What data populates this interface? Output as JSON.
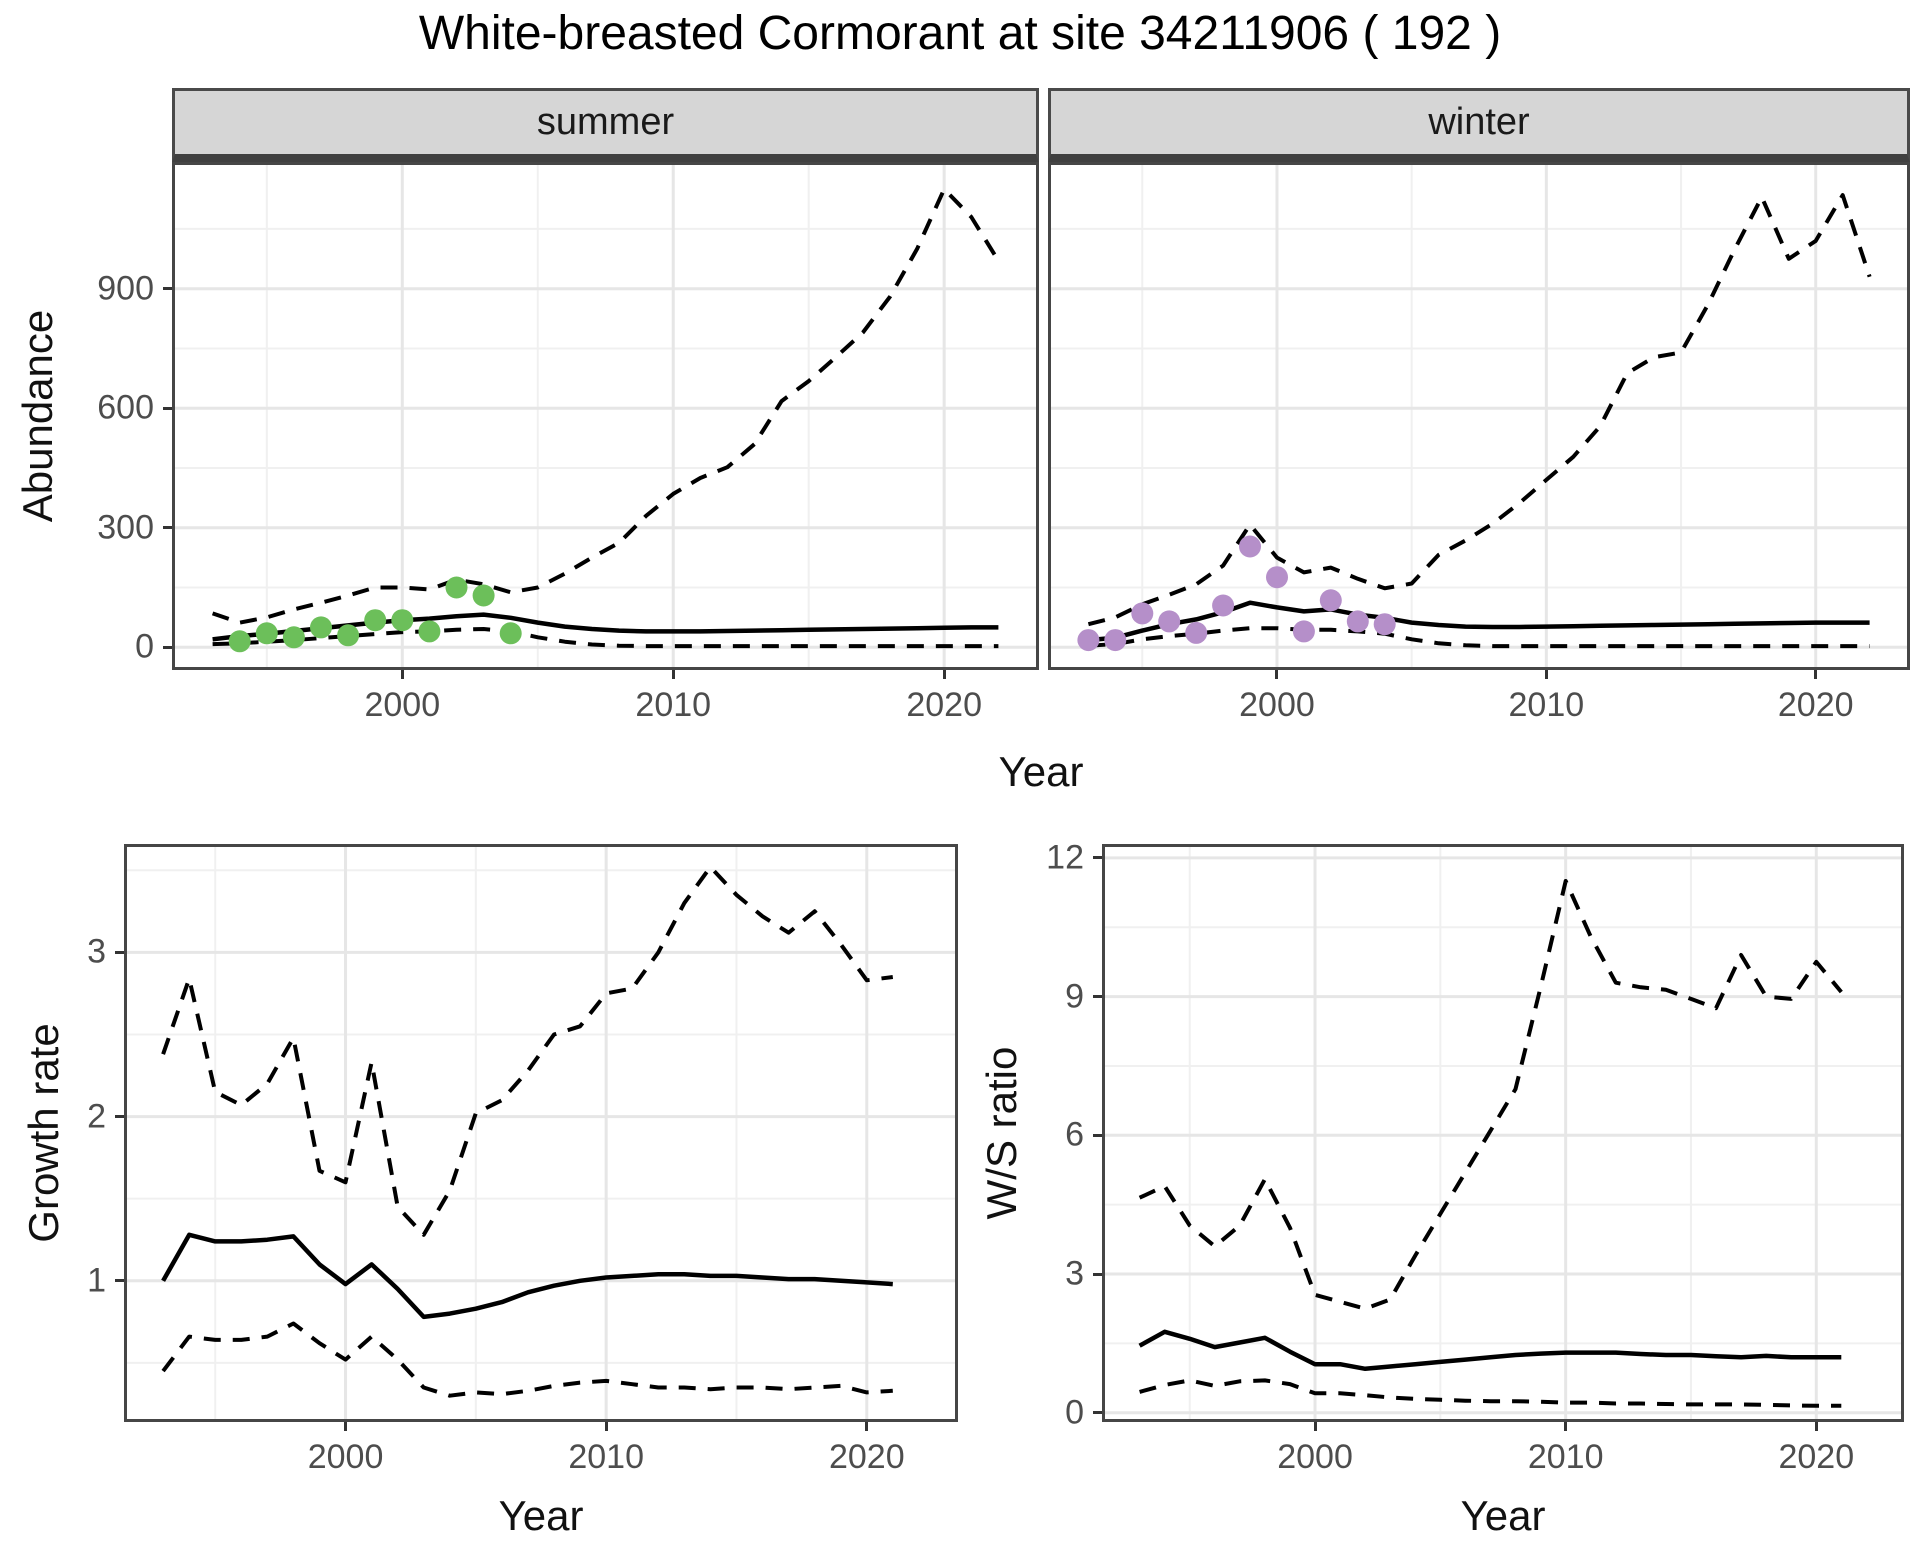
{
  "title": "White-breasted Cormorant at site 34211906 ( 192 )",
  "colors": {
    "line": "#000000",
    "grid_major": "#e6e6e6",
    "grid_minor": "#f0f0f0",
    "panel_border": "#464646",
    "strip_background": "#d6d6d6",
    "tick_text": "#4d4d4d",
    "summer_points": "#6cbf5a",
    "winter_points": "#b58fc9"
  },
  "chart_data": [
    {
      "type": "line",
      "title": "summer",
      "xlabel": "Year",
      "ylabel": "Abundance",
      "legend": "none",
      "grid": true,
      "xlim": [
        1991.5,
        2023.5
      ],
      "ylim": [
        -57,
        1218
      ],
      "xticks": [
        2000,
        2010,
        2020
      ],
      "xtick_labels": [
        "2000",
        "2010",
        "2020"
      ],
      "xticks_minor": [
        1995,
        2005,
        2015
      ],
      "yticks": [
        0,
        300,
        600,
        900
      ],
      "ytick_labels": [
        "0",
        "300",
        "600",
        "900"
      ],
      "yticks_minor": [
        150,
        450,
        750,
        1050
      ],
      "x": [
        1993,
        1994,
        1995,
        1996,
        1997,
        1998,
        1999,
        2000,
        2001,
        2002,
        2003,
        2004,
        2005,
        2006,
        2007,
        2008,
        2009,
        2010,
        2011,
        2012,
        2013,
        2014,
        2015,
        2016,
        2017,
        2018,
        2019,
        2020,
        2021,
        2022
      ],
      "series": [
        {
          "name": "upper_ci",
          "line": "dashed",
          "values": [
            85,
            62,
            75,
            95,
            112,
            130,
            150,
            150,
            145,
            170,
            158,
            138,
            150,
            185,
            225,
            262,
            330,
            385,
            425,
            452,
            510,
            618,
            668,
            728,
            790,
            880,
            1000,
            1150,
            1080,
            970
          ]
        },
        {
          "name": "estimate",
          "line": "solid",
          "values": [
            20,
            28,
            34,
            41,
            48,
            55,
            62,
            68,
            72,
            78,
            82,
            74,
            62,
            52,
            46,
            42,
            40,
            40,
            40,
            41,
            42,
            43,
            44,
            45,
            46,
            47,
            48,
            49,
            50,
            50
          ]
        },
        {
          "name": "lower_ci",
          "line": "dashed",
          "values": [
            8,
            10,
            14,
            18,
            23,
            28,
            33,
            38,
            40,
            44,
            46,
            40,
            25,
            14,
            7,
            4,
            3,
            3,
            3,
            3,
            3,
            3,
            3,
            3,
            3,
            3,
            3,
            3,
            3,
            3
          ]
        }
      ],
      "points": {
        "name": "summer-observations",
        "color": "#6cbf5a",
        "x": [
          1994,
          1995,
          1996,
          1997,
          1998,
          1999,
          2000,
          2001,
          2002,
          2003,
          2004
        ],
        "y": [
          15,
          35,
          25,
          50,
          30,
          68,
          68,
          40,
          150,
          130,
          35
        ]
      }
    },
    {
      "type": "line",
      "title": "winter",
      "xlabel": "Year",
      "ylabel": "Abundance",
      "legend": "none",
      "grid": true,
      "xlim": [
        1991.5,
        2023.5
      ],
      "ylim": [
        -57,
        1218
      ],
      "xticks": [
        2000,
        2010,
        2020
      ],
      "xtick_labels": [
        "2000",
        "2010",
        "2020"
      ],
      "xticks_minor": [
        1995,
        2005,
        2015
      ],
      "yticks": [
        0,
        300,
        600,
        900
      ],
      "ytick_labels": [],
      "yticks_minor": [
        150,
        450,
        750,
        1050
      ],
      "x": [
        1993,
        1994,
        1995,
        1996,
        1997,
        1998,
        1999,
        2000,
        2001,
        2002,
        2003,
        2004,
        2005,
        2006,
        2007,
        2008,
        2009,
        2010,
        2011,
        2012,
        2013,
        2014,
        2015,
        2016,
        2017,
        2018,
        2019,
        2020,
        2021,
        2022
      ],
      "series": [
        {
          "name": "upper_ci",
          "line": "dashed",
          "values": [
            58,
            75,
            108,
            132,
            158,
            205,
            308,
            225,
            188,
            200,
            172,
            148,
            160,
            232,
            268,
            310,
            362,
            420,
            478,
            555,
            688,
            728,
            740,
            860,
            1000,
            1130,
            975,
            1020,
            1135,
            930
          ]
        },
        {
          "name": "estimate",
          "line": "solid",
          "values": [
            18,
            24,
            42,
            58,
            70,
            88,
            112,
            100,
            90,
            95,
            82,
            74,
            62,
            56,
            52,
            51,
            51,
            52,
            53,
            54,
            55,
            56,
            57,
            58,
            59,
            60,
            61,
            62,
            62,
            62
          ]
        },
        {
          "name": "lower_ci",
          "line": "dashed",
          "values": [
            4,
            8,
            20,
            28,
            34,
            42,
            48,
            48,
            44,
            44,
            40,
            34,
            20,
            10,
            5,
            3,
            3,
            3,
            3,
            3,
            3,
            3,
            3,
            3,
            3,
            3,
            3,
            3,
            3,
            3
          ]
        }
      ],
      "points": {
        "name": "winter-observations",
        "color": "#b58fc9",
        "x": [
          1993,
          1994,
          1995,
          1996,
          1997,
          1998,
          1999,
          2000,
          2001,
          2002,
          2003,
          2004
        ],
        "y": [
          18,
          18,
          85,
          65,
          36,
          105,
          253,
          176,
          40,
          118,
          65,
          58
        ]
      }
    },
    {
      "type": "line",
      "title": "Growth rate panel",
      "xlabel": "Year",
      "ylabel": "Growth rate",
      "legend": "none",
      "grid": true,
      "xlim": [
        1991.5,
        2023.5
      ],
      "ylim": [
        0.14,
        3.66
      ],
      "xticks": [
        2000,
        2010,
        2020
      ],
      "xtick_labels": [
        "2000",
        "2010",
        "2020"
      ],
      "xticks_minor": [
        1995,
        2005,
        2015
      ],
      "yticks": [
        1,
        2,
        3
      ],
      "ytick_labels": [
        "1",
        "2",
        "3"
      ],
      "yticks_minor": [
        0.5,
        1.5,
        2.5,
        3.5
      ],
      "x": [
        1993,
        1994,
        1995,
        1996,
        1997,
        1998,
        1999,
        2000,
        2001,
        2002,
        2003,
        2004,
        2005,
        2006,
        2007,
        2008,
        2009,
        2010,
        2011,
        2012,
        2013,
        2014,
        2015,
        2016,
        2017,
        2018,
        2019,
        2020,
        2021
      ],
      "series": [
        {
          "name": "upper_ci",
          "line": "dashed",
          "values": [
            2.38,
            2.84,
            2.15,
            2.07,
            2.2,
            2.48,
            1.67,
            1.6,
            2.33,
            1.45,
            1.28,
            1.55,
            2.02,
            2.1,
            2.28,
            2.5,
            2.55,
            2.75,
            2.78,
            3.0,
            3.3,
            3.52,
            3.35,
            3.22,
            3.12,
            3.25,
            3.05,
            2.83,
            2.85
          ]
        },
        {
          "name": "estimate",
          "line": "solid",
          "values": [
            1.0,
            1.28,
            1.24,
            1.24,
            1.25,
            1.27,
            1.1,
            0.98,
            1.1,
            0.95,
            0.78,
            0.8,
            0.83,
            0.87,
            0.93,
            0.97,
            1.0,
            1.02,
            1.03,
            1.04,
            1.04,
            1.03,
            1.03,
            1.02,
            1.01,
            1.01,
            1.0,
            0.99,
            0.98
          ]
        },
        {
          "name": "lower_ci",
          "line": "dashed",
          "values": [
            0.45,
            0.66,
            0.64,
            0.64,
            0.66,
            0.74,
            0.62,
            0.52,
            0.66,
            0.52,
            0.35,
            0.3,
            0.32,
            0.31,
            0.33,
            0.36,
            0.38,
            0.39,
            0.37,
            0.35,
            0.35,
            0.34,
            0.35,
            0.35,
            0.34,
            0.35,
            0.36,
            0.32,
            0.33
          ]
        }
      ],
      "points": null
    },
    {
      "type": "line",
      "title": "W/S ratio panel",
      "xlabel": "Year",
      "ylabel": "W/S ratio",
      "legend": "none",
      "grid": true,
      "xlim": [
        1991.5,
        2023.5
      ],
      "ylim": [
        -0.2,
        12.3
      ],
      "xticks": [
        2000,
        2010,
        2020
      ],
      "xtick_labels": [
        "2000",
        "2010",
        "2020"
      ],
      "xticks_minor": [
        1995,
        2005,
        2015
      ],
      "yticks": [
        0,
        3,
        6,
        9,
        12
      ],
      "ytick_labels": [
        "0",
        "3",
        "6",
        "9",
        "12"
      ],
      "yticks_minor": [
        1.5,
        4.5,
        7.5,
        10.5
      ],
      "x": [
        1993,
        1994,
        1995,
        1996,
        1997,
        1998,
        1999,
        2000,
        2001,
        2002,
        2003,
        2004,
        2005,
        2006,
        2007,
        2008,
        2009,
        2010,
        2011,
        2012,
        2013,
        2014,
        2015,
        2016,
        2017,
        2018,
        2019,
        2020,
        2021
      ],
      "series": [
        {
          "name": "upper_ci",
          "line": "dashed",
          "values": [
            4.65,
            4.9,
            4.05,
            3.6,
            4.05,
            5.05,
            4.0,
            2.55,
            2.4,
            2.25,
            2.45,
            3.4,
            4.3,
            5.2,
            6.1,
            7.0,
            9.2,
            11.5,
            10.3,
            9.3,
            9.2,
            9.15,
            8.95,
            8.75,
            9.9,
            9.0,
            8.95,
            9.75,
            9.1
          ]
        },
        {
          "name": "estimate",
          "line": "solid",
          "values": [
            1.45,
            1.75,
            1.6,
            1.42,
            1.52,
            1.62,
            1.32,
            1.05,
            1.05,
            0.95,
            1.0,
            1.05,
            1.1,
            1.15,
            1.2,
            1.25,
            1.28,
            1.3,
            1.3,
            1.3,
            1.27,
            1.25,
            1.25,
            1.22,
            1.2,
            1.23,
            1.2,
            1.2,
            1.2
          ]
        },
        {
          "name": "lower_ci",
          "line": "dashed",
          "values": [
            0.45,
            0.6,
            0.7,
            0.58,
            0.68,
            0.7,
            0.62,
            0.42,
            0.42,
            0.38,
            0.33,
            0.3,
            0.28,
            0.26,
            0.25,
            0.25,
            0.24,
            0.22,
            0.22,
            0.2,
            0.2,
            0.19,
            0.18,
            0.18,
            0.18,
            0.17,
            0.16,
            0.15,
            0.15
          ]
        }
      ],
      "points": null
    }
  ]
}
